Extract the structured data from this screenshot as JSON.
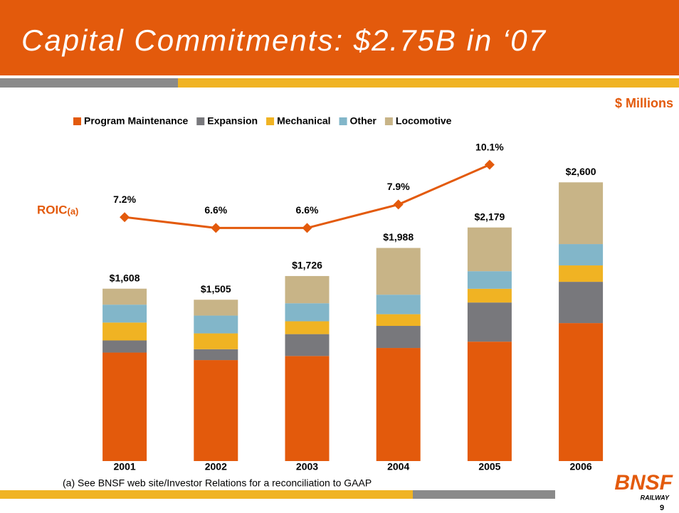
{
  "header": {
    "title": "Capital Commitments:  $2.75B in ‘07"
  },
  "chart_data": {
    "type": "bar",
    "stacked": true,
    "unit_label": "$ Millions",
    "categories": [
      "2001",
      "2002",
      "2003",
      "2004",
      "2005",
      "2006"
    ],
    "ylim": [
      0,
      3000
    ],
    "y2lim": [
      -6.3,
      11.5
    ],
    "series": [
      {
        "name": "Program Maintenance",
        "color": "#e35a0c",
        "values": [
          1012,
          942,
          980,
          1055,
          1114,
          1287
        ]
      },
      {
        "name": "Expansion",
        "color": "#78787c",
        "values": [
          113,
          101,
          204,
          206,
          365,
          385
        ]
      },
      {
        "name": "Mechanical",
        "color": "#f0b323",
        "values": [
          167,
          148,
          120,
          109,
          128,
          153
        ]
      },
      {
        "name": "Other",
        "color": "#82b6c9",
        "values": [
          167,
          166,
          168,
          182,
          164,
          199
        ]
      },
      {
        "name": "Locomotive",
        "color": "#c8b487",
        "values": [
          149,
          148,
          254,
          436,
          408,
          576
        ]
      }
    ],
    "totals": {
      "values": [
        1608,
        1505,
        1726,
        1988,
        2179,
        2600
      ],
      "value_labels": [
        "$1,608",
        "$1,505",
        "$1,726",
        "$1,988",
        "$2,179",
        "$2,600"
      ]
    },
    "line": {
      "type": "line",
      "name": "ROIC",
      "name_note": "(a)",
      "axis": "y2",
      "color": "#e35a0c",
      "values": [
        7.2,
        6.6,
        6.6,
        7.9,
        10.1,
        null
      ],
      "value_labels": [
        "7.2%",
        "6.6%",
        "6.6%",
        "7.9%",
        "10.1%",
        null
      ]
    }
  },
  "footnote": "(a)  See BNSF web site/Investor Relations for a reconciliation to GAAP",
  "logo": {
    "brand": "BNSF",
    "sub": "RAILWAY"
  },
  "page_number": "9"
}
